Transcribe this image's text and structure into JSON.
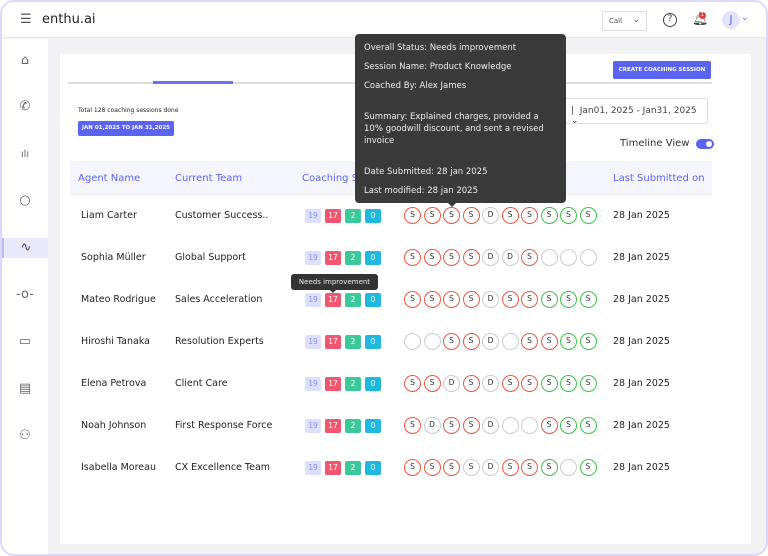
{
  "app": {
    "title": "enthu.ai",
    "channel_select": "Call",
    "avatar_initial": "J",
    "notifications": "1"
  },
  "sidebar": {
    "items": [
      {
        "icon": "home-icon"
      },
      {
        "icon": "phone-icon"
      },
      {
        "icon": "bar-chart-icon"
      },
      {
        "icon": "search-icon"
      },
      {
        "icon": "activity-icon",
        "active": true
      },
      {
        "icon": "commit-icon"
      },
      {
        "icon": "book-icon"
      },
      {
        "icon": "document-icon"
      },
      {
        "icon": "add-user-icon"
      }
    ]
  },
  "main": {
    "create_button": "CREATE COACHING SESSION",
    "total_text": "Total 128 coaching sessions done",
    "date_badge": "JAN 01,2025 TO JAN 31,2025",
    "date_range": "Jan01, 2025 - Jan31, 2025",
    "timeline_label": "Timeline View",
    "timeline_on": true
  },
  "table": {
    "headers": [
      "Agent Name",
      "Current Team",
      "Coaching S",
      "Last Submitted on"
    ],
    "rows": [
      {
        "name": "Liam Carter",
        "team": "Customer Success..",
        "counts": [
          "19",
          "17",
          "2",
          "0"
        ],
        "sessions": [
          "r:S",
          "r:S",
          "r:S",
          "r:S",
          "d:D",
          "r:S",
          "r:S",
          "g:S",
          "g:S",
          "g:S"
        ],
        "last": "28 Jan 2025"
      },
      {
        "name": "Sophia Müller",
        "team": "Global Support",
        "counts": [
          "19",
          "17",
          "2",
          "0"
        ],
        "sessions": [
          "r:S",
          "r:S",
          "r:S",
          "r:S",
          "d:D",
          "d:D",
          "r:S",
          "d:",
          "d:",
          "d:"
        ],
        "last": "28 Jan 2025"
      },
      {
        "name": "Mateo Rodrigue",
        "team": "Sales Acceleration",
        "counts": [
          "19",
          "17",
          "2",
          "0"
        ],
        "sessions": [
          "r:S",
          "r:S",
          "r:S",
          "r:S",
          "d:D",
          "r:S",
          "r:S",
          "g:S",
          "g:S",
          "g:S"
        ],
        "last": "28 Jan 2025"
      },
      {
        "name": "Hiroshi Tanaka",
        "team": "Resolution Experts",
        "counts": [
          "19",
          "17",
          "2",
          "0"
        ],
        "sessions": [
          "d:",
          "d:",
          "r:S",
          "r:S",
          "d:D",
          "d:",
          "r:S",
          "r:S",
          "g:S",
          "g:S"
        ],
        "last": "28 Jan 2025"
      },
      {
        "name": "Elena Petrova",
        "team": "Client Care",
        "counts": [
          "19",
          "17",
          "2",
          "0"
        ],
        "sessions": [
          "r:S",
          "r:S",
          "d:D",
          "r:S",
          "d:D",
          "r:S",
          "r:S",
          "g:S",
          "g:S",
          "g:S"
        ],
        "last": "28 Jan 2025"
      },
      {
        "name": "Noah Johnson",
        "team": "First Response Force",
        "counts": [
          "19",
          "17",
          "2",
          "0"
        ],
        "sessions": [
          "r:S",
          "d:D",
          "r:S",
          "r:S",
          "d:D",
          "d:",
          "d:",
          "r:S",
          "g:S",
          "g:S"
        ],
        "last": "28 Jan 2025"
      },
      {
        "name": "Isabella Moreau",
        "team": "CX Excellence Team",
        "counts": [
          "19",
          "17",
          "2",
          "0"
        ],
        "sessions": [
          "r:S",
          "r:S",
          "r:S",
          "d:S",
          "d:D",
          "r:S",
          "r:S",
          "g:S",
          "d:",
          "g:S"
        ],
        "last": "28 Jan 2025"
      }
    ]
  },
  "tooltip": {
    "status": "Overall Status: Needs improvement",
    "session": "Session Name: Product Knowledge",
    "coach": "Coached By: Alex James",
    "summary": "Summary: Explained charges, provided a 10% goodwill discount, and sent a revised invoice",
    "submitted": "Date Submitted: 28 jan 2025",
    "modified": "Last modified: 28 jan 2025"
  },
  "small_tooltip": "Needs improvement",
  "colors": {
    "accent": "#5a63f2",
    "needs_improvement": "#f0543f",
    "good": "#3cc14a",
    "neutral": "#cccccc"
  }
}
